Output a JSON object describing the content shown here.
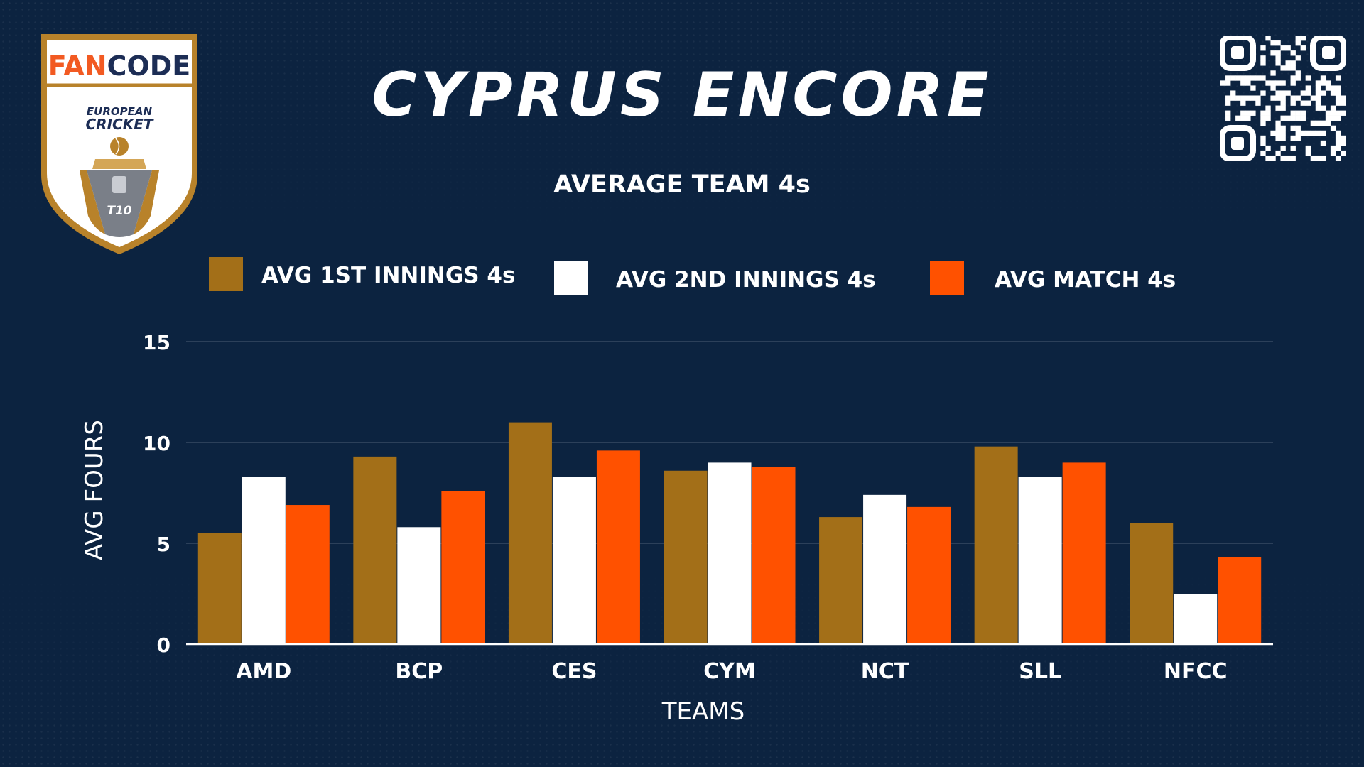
{
  "header": {
    "title": "CYPRUS ENCORE",
    "logo": {
      "brand_fan": "FAN",
      "brand_code": "CODE",
      "line1": "EUROPEAN",
      "line2": "CRICKET",
      "format": "T10"
    },
    "qr_icon": "qr-code-icon"
  },
  "colors": {
    "background": "#0c2340",
    "series_1": "#a36f18",
    "series_2": "#ffffff",
    "series_3": "#ff5100",
    "logo_gold": "#b8822a",
    "logo_orange": "#f25a22",
    "logo_navy": "#1c2d55"
  },
  "chart_data": {
    "type": "bar",
    "title": "AVERAGE TEAM 4s",
    "xlabel": "TEAMS",
    "ylabel": "AVG FOURS",
    "ylim": [
      0,
      15
    ],
    "yticks": [
      0,
      5,
      10,
      15
    ],
    "grid": true,
    "legend_position": "top",
    "categories": [
      "AMD",
      "BCP",
      "CES",
      "CYM",
      "NCT",
      "SLL",
      "NFCC"
    ],
    "series": [
      {
        "name": "AVG 1ST INNINGS 4s",
        "color": "#a36f18",
        "values": [
          5.5,
          9.3,
          11.0,
          8.6,
          6.3,
          9.8,
          6.0
        ]
      },
      {
        "name": "AVG 2ND INNINGS 4s",
        "color": "#ffffff",
        "values": [
          8.3,
          5.8,
          8.3,
          9.0,
          7.4,
          8.3,
          2.5
        ]
      },
      {
        "name": "AVG MATCH 4s",
        "color": "#ff5100",
        "values": [
          6.9,
          7.6,
          9.6,
          8.8,
          6.8,
          9.0,
          4.3
        ]
      }
    ]
  }
}
